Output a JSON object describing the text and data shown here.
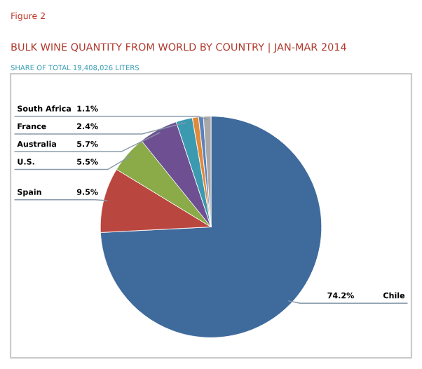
{
  "chart_data": {
    "type": "pie",
    "title": "BULK WINE QUANTITY FROM WORLD BY COUNTRY | JAN-MAR 2014",
    "subtitle": "SHARE OF TOTAL 19,408,026 LITERS",
    "annotations": [
      "Figure 2"
    ],
    "categories": [
      "Chile",
      "Spain",
      "U.S.",
      "Australia",
      "France",
      null,
      null,
      "South Africa"
    ],
    "values": [
      74.2,
      9.5,
      5.5,
      5.7,
      2.4,
      0.9,
      0.7,
      1.1
    ],
    "value_labels": [
      "74.2%",
      "9.5%",
      "5.5%",
      "5.7%",
      "2.4%",
      null,
      null,
      "1.1%"
    ],
    "colors": [
      "#3f6a9c",
      "#b9463f",
      "#8aab48",
      "#6e5092",
      "#3b9ab0",
      "#e08a3a",
      "#5d82bb",
      "#a8a8a8"
    ]
  }
}
